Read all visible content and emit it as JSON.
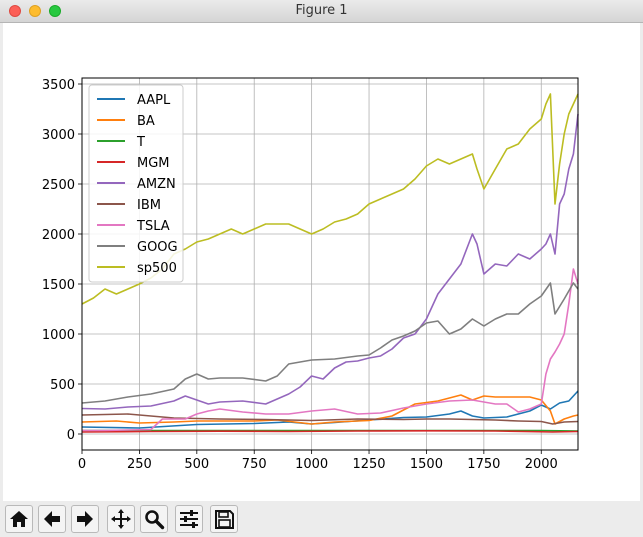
{
  "window": {
    "title": "Figure 1"
  },
  "toolbar": {
    "buttons": [
      {
        "name": "home-button",
        "icon": "home-icon"
      },
      {
        "name": "back-button",
        "icon": "arrow-left-icon"
      },
      {
        "name": "forward-button",
        "icon": "arrow-right-icon"
      },
      {
        "name": "pan-button",
        "icon": "move-icon"
      },
      {
        "name": "zoom-button",
        "icon": "magnifier-icon"
      },
      {
        "name": "configure-subplots-button",
        "icon": "sliders-icon"
      },
      {
        "name": "save-button",
        "icon": "floppy-disk-icon"
      }
    ]
  },
  "chart_data": {
    "type": "line",
    "title": "",
    "xlabel": "",
    "ylabel": "",
    "xlim": [
      0,
      2160
    ],
    "ylim": [
      -160,
      3560
    ],
    "xticks": [
      0,
      250,
      500,
      750,
      1000,
      1250,
      1500,
      1750,
      2000
    ],
    "yticks": [
      0,
      500,
      1000,
      1500,
      2000,
      2500,
      3000,
      3500
    ],
    "grid": true,
    "legend_position": "upper-left",
    "series": [
      {
        "name": "AAPL",
        "color": "#1f77b4",
        "points": [
          [
            0,
            70
          ],
          [
            250,
            60
          ],
          [
            500,
            95
          ],
          [
            750,
            105
          ],
          [
            900,
            120
          ],
          [
            1000,
            100
          ],
          [
            1100,
            115
          ],
          [
            1250,
            140
          ],
          [
            1400,
            165
          ],
          [
            1500,
            170
          ],
          [
            1600,
            200
          ],
          [
            1650,
            230
          ],
          [
            1700,
            180
          ],
          [
            1750,
            160
          ],
          [
            1850,
            170
          ],
          [
            1950,
            230
          ],
          [
            2000,
            290
          ],
          [
            2040,
            250
          ],
          [
            2080,
            310
          ],
          [
            2120,
            330
          ],
          [
            2160,
            430
          ]
        ]
      },
      {
        "name": "BA",
        "color": "#ff7f0e",
        "points": [
          [
            0,
            120
          ],
          [
            150,
            130
          ],
          [
            250,
            110
          ],
          [
            400,
            120
          ],
          [
            500,
            130
          ],
          [
            750,
            130
          ],
          [
            850,
            140
          ],
          [
            1000,
            100
          ],
          [
            1100,
            120
          ],
          [
            1250,
            135
          ],
          [
            1350,
            180
          ],
          [
            1450,
            300
          ],
          [
            1550,
            330
          ],
          [
            1650,
            390
          ],
          [
            1700,
            340
          ],
          [
            1750,
            380
          ],
          [
            1800,
            370
          ],
          [
            1850,
            370
          ],
          [
            1950,
            370
          ],
          [
            2000,
            340
          ],
          [
            2040,
            230
          ],
          [
            2060,
            100
          ],
          [
            2100,
            150
          ],
          [
            2140,
            180
          ],
          [
            2160,
            190
          ]
        ]
      },
      {
        "name": "T",
        "color": "#2ca02c",
        "points": [
          [
            0,
            35
          ],
          [
            500,
            34
          ],
          [
            1000,
            35
          ],
          [
            1500,
            35
          ],
          [
            2000,
            35
          ],
          [
            2160,
            30
          ]
        ]
      },
      {
        "name": "MGM",
        "color": "#d62728",
        "points": [
          [
            0,
            20
          ],
          [
            300,
            25
          ],
          [
            600,
            28
          ],
          [
            900,
            25
          ],
          [
            1200,
            30
          ],
          [
            1500,
            32
          ],
          [
            1800,
            30
          ],
          [
            2050,
            20
          ],
          [
            2160,
            25
          ]
        ]
      },
      {
        "name": "AMZN",
        "color": "#9467bd",
        "points": [
          [
            0,
            255
          ],
          [
            100,
            250
          ],
          [
            200,
            270
          ],
          [
            300,
            280
          ],
          [
            400,
            330
          ],
          [
            450,
            380
          ],
          [
            550,
            300
          ],
          [
            600,
            320
          ],
          [
            700,
            330
          ],
          [
            800,
            300
          ],
          [
            900,
            400
          ],
          [
            950,
            470
          ],
          [
            1000,
            580
          ],
          [
            1050,
            550
          ],
          [
            1100,
            660
          ],
          [
            1150,
            720
          ],
          [
            1200,
            730
          ],
          [
            1250,
            760
          ],
          [
            1300,
            780
          ],
          [
            1350,
            850
          ],
          [
            1400,
            960
          ],
          [
            1450,
            1000
          ],
          [
            1500,
            1150
          ],
          [
            1550,
            1400
          ],
          [
            1600,
            1550
          ],
          [
            1650,
            1700
          ],
          [
            1700,
            2000
          ],
          [
            1720,
            1900
          ],
          [
            1750,
            1600
          ],
          [
            1800,
            1700
          ],
          [
            1850,
            1680
          ],
          [
            1900,
            1800
          ],
          [
            1950,
            1750
          ],
          [
            2000,
            1850
          ],
          [
            2020,
            1900
          ],
          [
            2040,
            2000
          ],
          [
            2060,
            1800
          ],
          [
            2080,
            2300
          ],
          [
            2100,
            2400
          ],
          [
            2120,
            2650
          ],
          [
            2140,
            2800
          ],
          [
            2160,
            3200
          ]
        ]
      },
      {
        "name": "IBM",
        "color": "#8c564b",
        "points": [
          [
            0,
            190
          ],
          [
            200,
            200
          ],
          [
            400,
            160
          ],
          [
            600,
            150
          ],
          [
            800,
            145
          ],
          [
            1000,
            135
          ],
          [
            1200,
            150
          ],
          [
            1400,
            145
          ],
          [
            1500,
            150
          ],
          [
            1600,
            150
          ],
          [
            1700,
            145
          ],
          [
            1800,
            140
          ],
          [
            1900,
            130
          ],
          [
            2000,
            125
          ],
          [
            2050,
            100
          ],
          [
            2100,
            120
          ],
          [
            2160,
            125
          ]
        ]
      },
      {
        "name": "TSLA",
        "color": "#e377c2",
        "points": [
          [
            0,
            35
          ],
          [
            100,
            35
          ],
          [
            200,
            40
          ],
          [
            300,
            45
          ],
          [
            350,
            150
          ],
          [
            450,
            150
          ],
          [
            500,
            200
          ],
          [
            550,
            230
          ],
          [
            600,
            250
          ],
          [
            700,
            220
          ],
          [
            800,
            200
          ],
          [
            900,
            200
          ],
          [
            1000,
            230
          ],
          [
            1100,
            250
          ],
          [
            1200,
            200
          ],
          [
            1300,
            210
          ],
          [
            1400,
            260
          ],
          [
            1500,
            300
          ],
          [
            1600,
            330
          ],
          [
            1700,
            340
          ],
          [
            1800,
            300
          ],
          [
            1850,
            300
          ],
          [
            1900,
            220
          ],
          [
            1950,
            250
          ],
          [
            2000,
            300
          ],
          [
            2020,
            600
          ],
          [
            2040,
            750
          ],
          [
            2060,
            820
          ],
          [
            2080,
            900
          ],
          [
            2100,
            1000
          ],
          [
            2120,
            1300
          ],
          [
            2140,
            1650
          ],
          [
            2160,
            1500
          ]
        ]
      },
      {
        "name": "GOOG",
        "color": "#7f7f7f",
        "points": [
          [
            0,
            310
          ],
          [
            100,
            330
          ],
          [
            200,
            370
          ],
          [
            300,
            400
          ],
          [
            400,
            450
          ],
          [
            450,
            550
          ],
          [
            500,
            600
          ],
          [
            550,
            550
          ],
          [
            600,
            560
          ],
          [
            700,
            560
          ],
          [
            800,
            530
          ],
          [
            850,
            580
          ],
          [
            900,
            700
          ],
          [
            950,
            720
          ],
          [
            1000,
            740
          ],
          [
            1100,
            750
          ],
          [
            1200,
            780
          ],
          [
            1250,
            790
          ],
          [
            1300,
            860
          ],
          [
            1350,
            940
          ],
          [
            1400,
            980
          ],
          [
            1450,
            1030
          ],
          [
            1500,
            1110
          ],
          [
            1550,
            1130
          ],
          [
            1600,
            1000
          ],
          [
            1650,
            1050
          ],
          [
            1700,
            1150
          ],
          [
            1750,
            1080
          ],
          [
            1800,
            1150
          ],
          [
            1850,
            1200
          ],
          [
            1900,
            1200
          ],
          [
            1950,
            1300
          ],
          [
            2000,
            1380
          ],
          [
            2040,
            1510
          ],
          [
            2060,
            1200
          ],
          [
            2100,
            1350
          ],
          [
            2140,
            1510
          ],
          [
            2160,
            1450
          ]
        ]
      },
      {
        "name": "sp500",
        "color": "#bcbd22",
        "points": [
          [
            0,
            1300
          ],
          [
            50,
            1360
          ],
          [
            100,
            1450
          ],
          [
            150,
            1400
          ],
          [
            200,
            1450
          ],
          [
            250,
            1500
          ],
          [
            300,
            1560
          ],
          [
            350,
            1650
          ],
          [
            400,
            1800
          ],
          [
            450,
            1850
          ],
          [
            500,
            1920
          ],
          [
            550,
            1950
          ],
          [
            600,
            2000
          ],
          [
            650,
            2050
          ],
          [
            700,
            2000
          ],
          [
            750,
            2050
          ],
          [
            800,
            2100
          ],
          [
            850,
            2100
          ],
          [
            900,
            2100
          ],
          [
            950,
            2050
          ],
          [
            1000,
            2000
          ],
          [
            1050,
            2050
          ],
          [
            1100,
            2120
          ],
          [
            1150,
            2150
          ],
          [
            1200,
            2200
          ],
          [
            1250,
            2300
          ],
          [
            1300,
            2350
          ],
          [
            1350,
            2400
          ],
          [
            1400,
            2450
          ],
          [
            1450,
            2550
          ],
          [
            1500,
            2680
          ],
          [
            1550,
            2750
          ],
          [
            1600,
            2700
          ],
          [
            1650,
            2750
          ],
          [
            1700,
            2800
          ],
          [
            1720,
            2650
          ],
          [
            1750,
            2450
          ],
          [
            1800,
            2650
          ],
          [
            1850,
            2850
          ],
          [
            1900,
            2900
          ],
          [
            1950,
            3050
          ],
          [
            2000,
            3150
          ],
          [
            2020,
            3300
          ],
          [
            2040,
            3400
          ],
          [
            2060,
            2300
          ],
          [
            2080,
            2700
          ],
          [
            2100,
            3000
          ],
          [
            2120,
            3200
          ],
          [
            2140,
            3300
          ],
          [
            2160,
            3400
          ]
        ]
      }
    ]
  }
}
